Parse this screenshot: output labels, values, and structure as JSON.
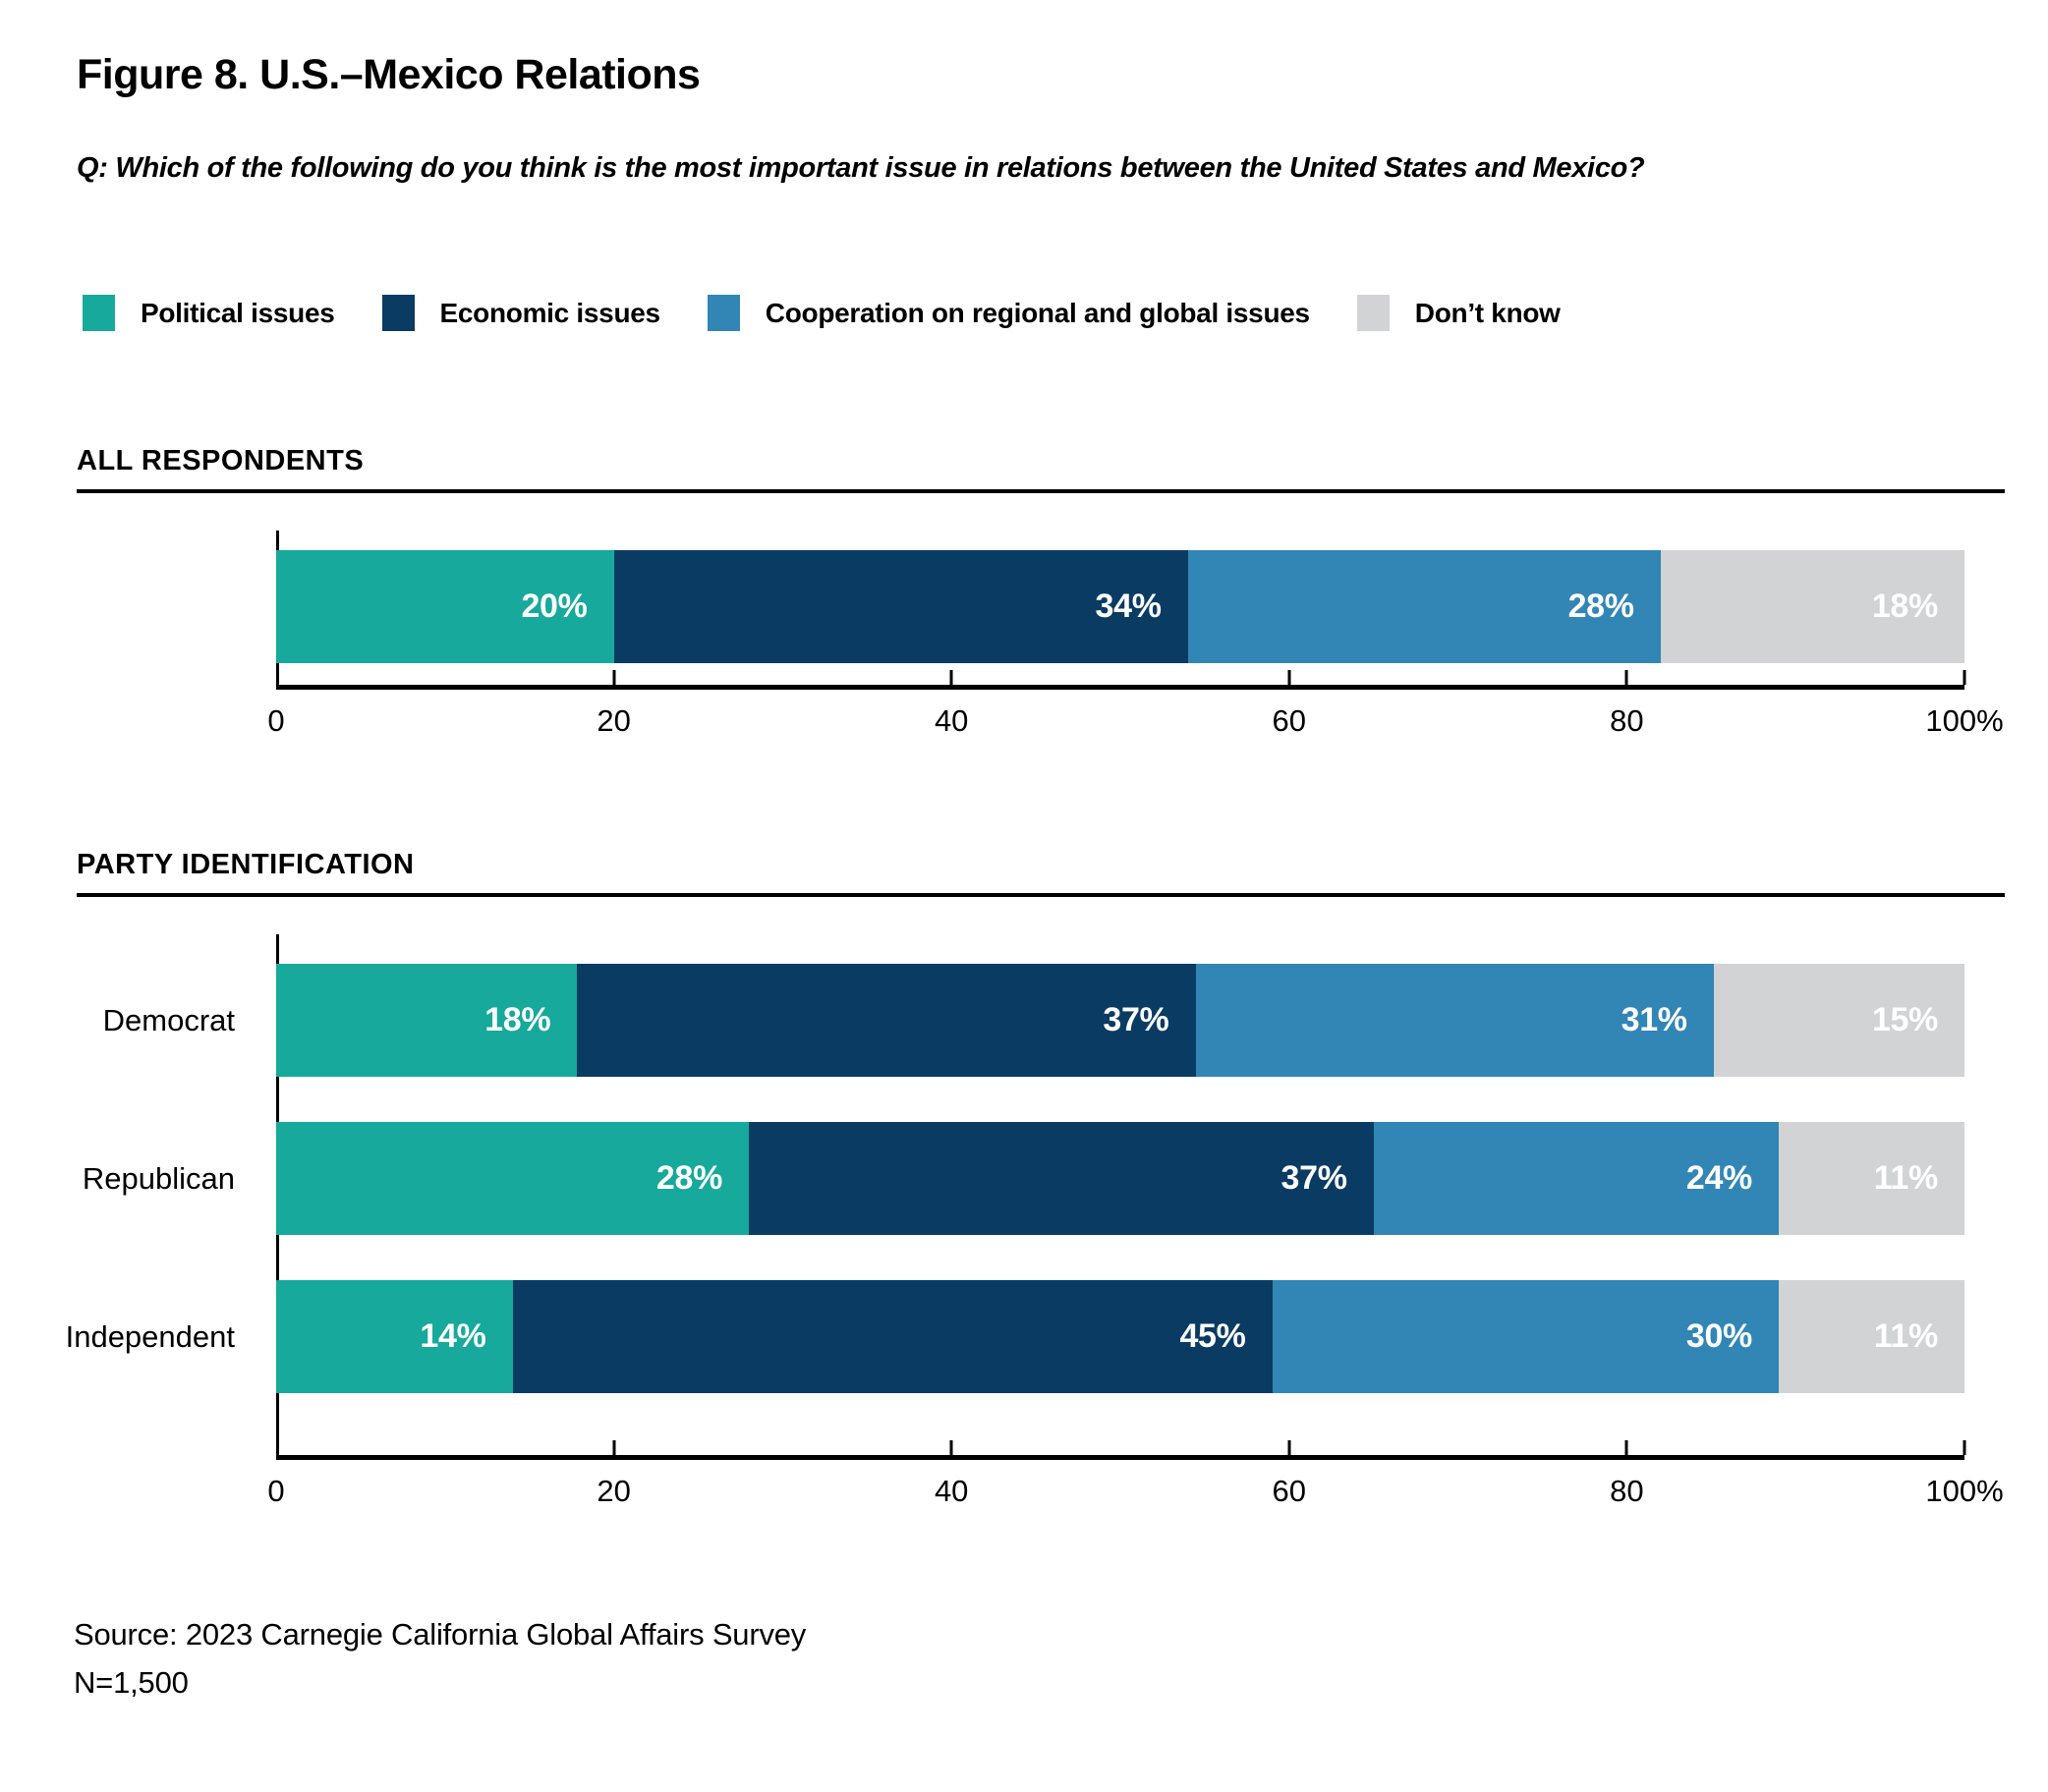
{
  "page": {
    "title": "Figure 8. U.S.–Mexico Relations",
    "question": "Q: Which of the following do you think is the most important issue in relations between the United States and Mexico?",
    "source_line1": "Source: 2023 Carnegie California Global Affairs Survey",
    "source_line2": "N=1,500"
  },
  "colors": {
    "political": "#17A99B",
    "economic": "#0A3B63",
    "cooperation": "#3186B5",
    "dont_know": "#D1D3D4",
    "text": "#000000",
    "bar_label": "#FFFFFF"
  },
  "legend": {
    "items": [
      {
        "label": "Political issues",
        "color": "#17A99B"
      },
      {
        "label": "Economic issues",
        "color": "#0A3B63"
      },
      {
        "label": "Cooperation on regional and global issues",
        "color": "#3186B5"
      },
      {
        "label": "Don’t know",
        "color": "#D1D3D4"
      }
    ]
  },
  "chart_data": [
    {
      "type": "bar",
      "subtype": "horizontal-stacked",
      "section_header": "ALL RESPONDENTS",
      "categories": [
        ""
      ],
      "series": [
        {
          "name": "Political issues",
          "color": "#17A99B",
          "values": [
            20
          ]
        },
        {
          "name": "Economic issues",
          "color": "#0A3B63",
          "values": [
            34
          ]
        },
        {
          "name": "Cooperation on regional and global issues",
          "color": "#3186B5",
          "values": [
            28
          ]
        },
        {
          "name": "Don’t know",
          "color": "#D1D3D4",
          "values": [
            18
          ]
        }
      ],
      "data_label_format": "{value}%",
      "x_axis": {
        "range": [
          0,
          100
        ],
        "ticks": [
          {
            "value": 0,
            "label": "0"
          },
          {
            "value": 20,
            "label": "20"
          },
          {
            "value": 40,
            "label": "40"
          },
          {
            "value": 60,
            "label": "60"
          },
          {
            "value": 80,
            "label": "80"
          },
          {
            "value": 100,
            "label": "100%"
          }
        ]
      },
      "grid": false,
      "legend_position": "top"
    },
    {
      "type": "bar",
      "subtype": "horizontal-stacked",
      "section_header": "PARTY IDENTIFICATION",
      "categories": [
        "Democrat",
        "Republican",
        "Independent"
      ],
      "series": [
        {
          "name": "Political issues",
          "color": "#17A99B",
          "values": [
            18,
            28,
            14
          ]
        },
        {
          "name": "Economic issues",
          "color": "#0A3B63",
          "values": [
            37,
            37,
            45
          ]
        },
        {
          "name": "Cooperation on regional and global issues",
          "color": "#3186B5",
          "values": [
            31,
            24,
            30
          ]
        },
        {
          "name": "Don’t know",
          "color": "#D1D3D4",
          "values": [
            15,
            11,
            11
          ]
        }
      ],
      "data_label_format": "{value}%",
      "x_axis": {
        "range": [
          0,
          100
        ],
        "ticks": [
          {
            "value": 0,
            "label": "0"
          },
          {
            "value": 20,
            "label": "20"
          },
          {
            "value": 40,
            "label": "40"
          },
          {
            "value": 60,
            "label": "60"
          },
          {
            "value": 80,
            "label": "80"
          },
          {
            "value": 100,
            "label": "100%"
          }
        ]
      },
      "grid": false,
      "legend_position": "top"
    }
  ]
}
